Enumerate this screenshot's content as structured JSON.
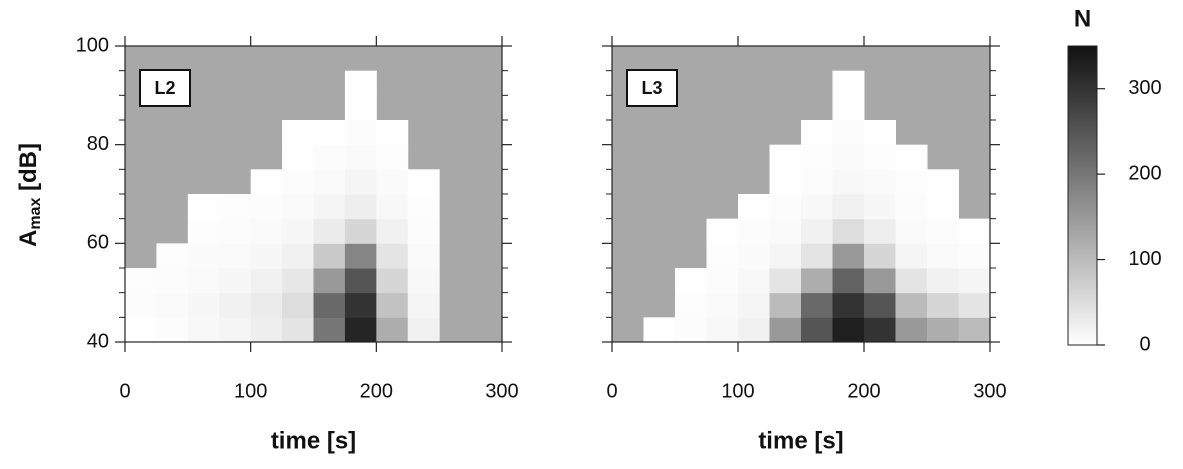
{
  "chart_data": [
    {
      "type": "heatmap",
      "label": "L2",
      "x_label": "time [s]",
      "y_label": {
        "main": "A",
        "sub": "max",
        "unit": " [dB]"
      },
      "na_color": "#a8a8a8",
      "xlim": [
        0,
        300
      ],
      "xticks": [
        0,
        100,
        200,
        300
      ],
      "ylim": [
        40,
        100
      ],
      "yticks": [
        40,
        60,
        80,
        100
      ],
      "yminor": [
        45,
        50,
        55,
        65,
        70,
        75,
        85,
        90,
        95
      ],
      "x_edges": [
        0,
        25,
        50,
        75,
        100,
        125,
        150,
        175,
        200,
        225,
        250,
        275,
        300
      ],
      "y_edges": [
        40,
        45,
        50,
        55,
        60,
        65,
        70,
        75,
        80,
        85,
        90,
        95,
        100
      ],
      "z": [
        [
          2,
          5,
          10,
          15,
          25,
          40,
          200,
          320,
          120,
          20,
          null,
          null
        ],
        [
          5,
          8,
          12,
          20,
          30,
          50,
          220,
          300,
          90,
          15,
          null,
          null
        ],
        [
          3,
          5,
          8,
          12,
          20,
          35,
          150,
          250,
          60,
          10,
          null,
          null
        ],
        [
          null,
          3,
          6,
          8,
          12,
          20,
          80,
          180,
          40,
          8,
          null,
          null
        ],
        [
          null,
          null,
          3,
          5,
          8,
          12,
          30,
          60,
          20,
          5,
          null,
          null
        ],
        [
          null,
          null,
          2,
          3,
          5,
          8,
          15,
          25,
          10,
          3,
          null,
          null
        ],
        [
          null,
          null,
          null,
          null,
          2,
          5,
          8,
          15,
          6,
          2,
          null,
          null
        ],
        [
          null,
          null,
          null,
          null,
          null,
          2,
          5,
          8,
          3,
          null,
          null,
          null
        ],
        [
          null,
          null,
          null,
          null,
          null,
          1,
          2,
          5,
          2,
          null,
          null,
          null
        ],
        [
          null,
          null,
          null,
          null,
          null,
          null,
          null,
          2,
          null,
          null,
          null,
          null
        ],
        [
          null,
          null,
          null,
          null,
          null,
          null,
          null,
          1,
          null,
          null,
          null,
          null
        ],
        [
          null,
          null,
          null,
          null,
          null,
          null,
          null,
          null,
          null,
          null,
          null,
          null
        ]
      ]
    },
    {
      "type": "heatmap",
      "label": "L3",
      "x_label": "time [s]",
      "na_color": "#a8a8a8",
      "xlim": [
        0,
        300
      ],
      "xticks": [
        0,
        100,
        200,
        300
      ],
      "ylim": [
        40,
        100
      ],
      "yticks": [
        40,
        60,
        80,
        100
      ],
      "yminor": [
        45,
        50,
        55,
        65,
        70,
        75,
        85,
        90,
        95
      ],
      "x_edges": [
        0,
        25,
        50,
        75,
        100,
        125,
        150,
        175,
        200,
        225,
        250,
        275,
        300
      ],
      "y_edges": [
        40,
        45,
        50,
        55,
        60,
        65,
        70,
        75,
        80,
        85,
        90,
        95,
        100
      ],
      "z": [
        [
          null,
          2,
          5,
          10,
          20,
          150,
          250,
          330,
          300,
          150,
          120,
          100
        ],
        [
          null,
          null,
          3,
          8,
          15,
          100,
          220,
          300,
          250,
          100,
          60,
          40
        ],
        [
          null,
          null,
          2,
          5,
          10,
          40,
          120,
          230,
          150,
          40,
          20,
          15
        ],
        [
          null,
          null,
          null,
          3,
          6,
          15,
          40,
          150,
          60,
          15,
          8,
          5
        ],
        [
          null,
          null,
          null,
          2,
          4,
          8,
          20,
          50,
          25,
          8,
          4,
          2
        ],
        [
          null,
          null,
          null,
          null,
          2,
          5,
          10,
          20,
          12,
          5,
          2,
          null
        ],
        [
          null,
          null,
          null,
          null,
          null,
          2,
          5,
          10,
          6,
          3,
          1,
          null
        ],
        [
          null,
          null,
          null,
          null,
          null,
          1,
          3,
          6,
          3,
          1,
          null,
          null
        ],
        [
          null,
          null,
          null,
          null,
          null,
          null,
          2,
          4,
          2,
          null,
          null,
          null
        ],
        [
          null,
          null,
          null,
          null,
          null,
          null,
          null,
          2,
          null,
          null,
          null,
          null
        ],
        [
          null,
          null,
          null,
          null,
          null,
          null,
          null,
          1,
          null,
          null,
          null,
          null
        ],
        [
          null,
          null,
          null,
          null,
          null,
          null,
          null,
          null,
          null,
          null,
          null,
          null
        ]
      ]
    }
  ],
  "colorbar": {
    "title": "N",
    "lim": [
      0,
      350
    ],
    "ticks": [
      0,
      100,
      200,
      300
    ],
    "colors": [
      "#ffffff",
      "#111111"
    ]
  }
}
